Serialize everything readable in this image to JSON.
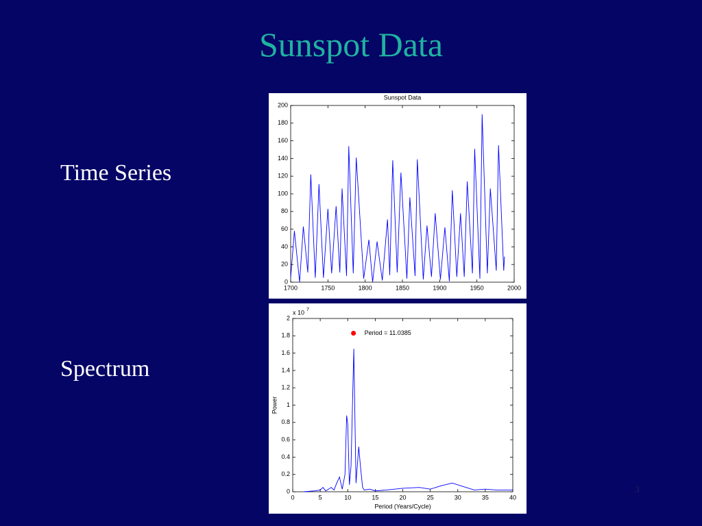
{
  "slide": {
    "title": "Sunspot Data",
    "labels": [
      "Time Series",
      "Spectrum"
    ],
    "page_number": "3"
  },
  "chart_data": [
    {
      "type": "line",
      "title": "Sunspot Data",
      "color": "#0000ff",
      "x": [
        1700,
        1705,
        1712,
        1717,
        1723,
        1727,
        1733,
        1738,
        1744,
        1750,
        1755,
        1761,
        1766,
        1769,
        1775,
        1778,
        1784,
        1788,
        1798,
        1805,
        1810,
        1816,
        1823,
        1830,
        1833,
        1837,
        1843,
        1848,
        1856,
        1860,
        1867,
        1870,
        1878,
        1883,
        1889,
        1894,
        1901,
        1907,
        1913,
        1917,
        1923,
        1928,
        1933,
        1937,
        1944,
        1947,
        1954,
        1957,
        1964,
        1968,
        1976,
        1979,
        1986,
        1987
      ],
      "y": [
        5,
        58,
        0,
        63,
        11,
        122,
        5,
        111,
        5,
        83,
        10,
        86,
        11,
        106,
        7,
        154,
        10,
        141,
        4,
        48,
        0,
        46,
        2,
        71,
        8,
        138,
        11,
        124,
        4,
        96,
        7,
        139,
        3,
        64,
        6,
        78,
        3,
        62,
        1,
        104,
        6,
        78,
        6,
        114,
        10,
        151,
        4,
        190,
        10,
        106,
        13,
        155,
        13,
        29
      ],
      "xlim": [
        1700,
        2000
      ],
      "xticks": [
        1700,
        1750,
        1800,
        1850,
        1900,
        1950,
        2000
      ],
      "ylim": [
        0,
        200
      ],
      "yticks": [
        0,
        20,
        40,
        60,
        80,
        100,
        120,
        140,
        160,
        180,
        200
      ]
    },
    {
      "type": "line",
      "color": "#0000ff",
      "xlabel": "Period (Years/Cycle)",
      "ylabel": "Power",
      "y_multiplier": {
        "base": "x 10",
        "exponent": "7"
      },
      "x": [
        2,
        3,
        4,
        5,
        5.5,
        6,
        6.5,
        7,
        7.5,
        8,
        8.5,
        9,
        9.5,
        9.8,
        10,
        10.3,
        10.6,
        11.1,
        11.5,
        12,
        12.3,
        12.7,
        13,
        14,
        15,
        17,
        20,
        23,
        25,
        27,
        29,
        31,
        33,
        35,
        37,
        40
      ],
      "y": [
        0,
        0.005,
        0.01,
        0.02,
        0.05,
        0.01,
        0.03,
        0.05,
        0.02,
        0.1,
        0.17,
        0.03,
        0.2,
        0.88,
        0.78,
        0.08,
        0.3,
        1.65,
        0.1,
        0.52,
        0.3,
        0.05,
        0.02,
        0.03,
        0.01,
        0.02,
        0.04,
        0.05,
        0.03,
        0.07,
        0.1,
        0.06,
        0.02,
        0.03,
        0.02,
        0.02
      ],
      "peak": {
        "x": 11.0385,
        "y": 1.83,
        "color": "#ff0000",
        "label": "Period = 11.0385"
      },
      "xlim": [
        0,
        40
      ],
      "xticks": [
        0,
        5,
        10,
        15,
        20,
        25,
        30,
        35,
        40
      ],
      "ylim": [
        0,
        2
      ],
      "yticks": [
        0,
        0.2,
        0.4,
        0.6,
        0.8,
        1,
        1.2,
        1.4,
        1.6,
        1.8,
        2
      ]
    }
  ]
}
